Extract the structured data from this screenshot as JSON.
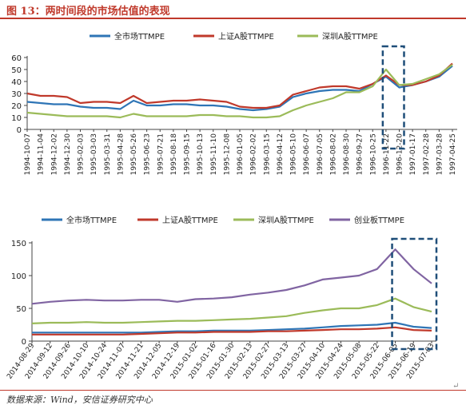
{
  "title": "图 13：两时间段的市场估值的表现",
  "source": "数据来源：Wind，安信证券研究中心",
  "colors": {
    "all": "#2e75b6",
    "sh": "#c0392b",
    "sz": "#9bbb59",
    "gem": "#8064a2",
    "accent": "#c0392b",
    "box": "#1f4e79"
  },
  "chart_data": [
    {
      "type": "line",
      "legend_position": "top",
      "ylim": [
        0,
        60
      ],
      "yticks": [
        "0",
        "10",
        "20",
        "30",
        "40",
        "50",
        "60"
      ],
      "x_ticks": [
        "1994-10-07",
        "1994-11-04",
        "1994-12-02",
        "1994-12-30",
        "1995-02-03",
        "1995-03-03",
        "1995-03-31",
        "1995-04-28",
        "1995-05-26",
        "1995-06-23",
        "1995-07-21",
        "1995-08-18",
        "1995-09-15",
        "1995-10-13",
        "1995-11-10",
        "1995-12-08",
        "1996-01-05",
        "1996-02-02",
        "1996-03-15",
        "1996-04-12",
        "1996-05-10",
        "1996-06-07",
        "1996-07-05",
        "1996-08-02",
        "1996-08-30",
        "1996-09-27",
        "1996-10-25",
        "1996-11-22",
        "1996-12-20",
        "1997-01-17",
        "1997-02-28",
        "1997-03-28",
        "1997-04-25"
      ],
      "highlight_range": [
        "1996-11-22",
        "1996-12-20"
      ],
      "series": [
        {
          "name": "全市场TTMPE",
          "color_key": "all",
          "values": [
            23,
            22,
            21,
            21,
            19,
            18,
            18,
            17,
            24,
            20,
            20,
            21,
            21,
            20,
            20,
            19,
            17,
            16,
            17,
            19,
            27,
            30,
            32,
            33,
            33,
            32,
            38,
            44,
            35,
            37,
            40,
            44,
            53
          ]
        },
        {
          "name": "上证A股TTMPE",
          "color_key": "sh",
          "values": [
            30,
            28,
            28,
            27,
            22,
            23,
            23,
            22,
            28,
            22,
            23,
            24,
            24,
            25,
            24,
            23,
            19,
            18,
            18,
            20,
            29,
            32,
            35,
            36,
            36,
            34,
            38,
            45,
            37,
            37,
            40,
            45,
            55
          ]
        },
        {
          "name": "深圳A股TTMPE",
          "color_key": "sz",
          "values": [
            14,
            13,
            12,
            11,
            11,
            11,
            11,
            10,
            13,
            11,
            11,
            11,
            11,
            12,
            12,
            11,
            11,
            10,
            10,
            11,
            16,
            20,
            23,
            26,
            31,
            31,
            36,
            50,
            37,
            38,
            42,
            46,
            54
          ]
        }
      ]
    },
    {
      "type": "line",
      "legend_position": "top",
      "ylim": [
        0,
        150
      ],
      "yticks": [
        "0",
        "50",
        "100",
        "150"
      ],
      "x_ticks": [
        "2014-08-29",
        "2014-09-12",
        "2014-09-26",
        "2014-10-10",
        "2014-10-24",
        "2014-11-07",
        "2014-11-21",
        "2014-12-05",
        "2014-12-19",
        "2015-01-02",
        "2015-01-16",
        "2015-01-30",
        "2015-02-13",
        "2015-02-27",
        "2015-03-13",
        "2015-03-27",
        "2015-04-10",
        "2015-04-24",
        "2015-05-08",
        "2015-05-22",
        "2015-06-05",
        "2015-06-19",
        "2015-07-03"
      ],
      "highlight_range": [
        "2015-06-05",
        "2015-07-03"
      ],
      "series": [
        {
          "name": "全市场TTMPE",
          "color_key": "all",
          "values": [
            13,
            13,
            13,
            13,
            13,
            13,
            13,
            14,
            15,
            15,
            16,
            16,
            16,
            17,
            18,
            19,
            21,
            23,
            24,
            25,
            28,
            22,
            20
          ]
        },
        {
          "name": "上证A股TTMPE",
          "color_key": "sh",
          "values": [
            10,
            10,
            10,
            10,
            10,
            10,
            11,
            12,
            13,
            13,
            14,
            14,
            14,
            15,
            15,
            16,
            17,
            18,
            18,
            19,
            21,
            17,
            16
          ]
        },
        {
          "name": "深圳A股TTMPE",
          "color_key": "sz",
          "values": [
            27,
            28,
            28,
            29,
            28,
            28,
            29,
            30,
            31,
            31,
            32,
            33,
            34,
            36,
            38,
            43,
            47,
            50,
            50,
            55,
            65,
            52,
            45
          ]
        },
        {
          "name": "创业板TTMPE",
          "color_key": "gem",
          "values": [
            57,
            60,
            62,
            63,
            62,
            62,
            63,
            63,
            60,
            64,
            65,
            67,
            71,
            74,
            78,
            85,
            94,
            97,
            100,
            110,
            140,
            110,
            88
          ]
        }
      ]
    }
  ]
}
